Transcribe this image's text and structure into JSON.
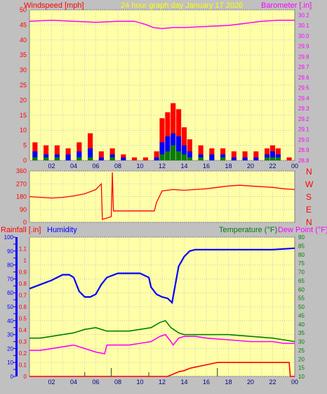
{
  "header": {
    "left_label": "Windspeed [mph]",
    "center_label": "24 hour graph day   January 17 2026",
    "right_label": "Barometer [.in]"
  },
  "direction_labels": [
    "N",
    "W",
    "S",
    "E",
    "N"
  ],
  "bottom_header": {
    "rainfall_label": "Rainfall [.in]",
    "humidity_label": "Humidity",
    "temperature_label": "Temperature (°F)",
    "dewpoint_label": "Dew Point (°F)"
  },
  "colors": {
    "background": "#c0c0c0",
    "plot_bg": "#ffffa8",
    "wind": "#ff0000",
    "wind_avg": "#0000ff",
    "wind_low": "#008000",
    "barometer": "#ff00ff",
    "direction": "#ff0000",
    "rain": "#ff0000",
    "humidity": "#0000ff",
    "temperature": "#008000",
    "dewpoint": "#ff00ff",
    "header_center": "#ffff00"
  },
  "chart_data": [
    {
      "type": "bar",
      "id": "wind",
      "xlabel": "",
      "x_tick_labels": [
        "02",
        "04",
        "06",
        "08",
        "10",
        "12",
        "14",
        "16",
        "18",
        "20",
        "22",
        "00"
      ],
      "ylabel": "Windspeed [mph]",
      "ylim": [
        0,
        50
      ],
      "y_ticks": [
        0,
        5,
        10,
        15,
        20,
        25,
        30,
        35,
        40,
        45,
        50
      ],
      "grid": true,
      "series": [
        {
          "name": "Windspeed [mph]",
          "x_hours": [
            0.5,
            1.5,
            2.5,
            3.5,
            4.5,
            5.5,
            6.5,
            7.5,
            8.5,
            9.5,
            10.5,
            11.5,
            12.0,
            12.5,
            13.0,
            13.5,
            14.0,
            14.5,
            15.5,
            16.5,
            17.5,
            18.5,
            19.5,
            20.5,
            21.5,
            22.0,
            22.5,
            23.5
          ],
          "gust": [
            6,
            5,
            5,
            4,
            6,
            9,
            3,
            4,
            2,
            1,
            1,
            3,
            14,
            16,
            19,
            17,
            11,
            7,
            5,
            4,
            4,
            3,
            3,
            3,
            4,
            5,
            4,
            1
          ],
          "average": [
            3,
            2,
            2,
            2,
            3,
            4,
            1,
            2,
            1,
            0,
            0,
            1,
            6,
            8,
            9,
            8,
            5,
            3,
            2,
            2,
            2,
            1,
            1,
            1,
            2,
            3,
            2,
            0
          ],
          "lull": [
            1,
            1,
            1,
            0,
            1,
            1,
            0,
            1,
            0,
            0,
            0,
            0,
            2,
            3,
            5,
            3,
            2,
            1,
            1,
            0,
            1,
            0,
            0,
            0,
            1,
            1,
            1,
            0
          ]
        }
      ]
    },
    {
      "type": "line",
      "id": "barometer",
      "ylabel": "Barometer [.in]",
      "ylim": [
        28.8,
        30.25
      ],
      "y_ticks": [
        28.8,
        28.9,
        29.0,
        29.1,
        29.2,
        29.3,
        29.4,
        29.5,
        29.6,
        29.7,
        29.8,
        29.9,
        30.0,
        30.1,
        30.2
      ],
      "series": [
        {
          "name": "Barometer [.in]",
          "x_hours": [
            0,
            2,
            4,
            6,
            8,
            9.5,
            10.5,
            11.2,
            12,
            13,
            14,
            16,
            18,
            19.5,
            21,
            22.5,
            24
          ],
          "values": [
            30.14,
            30.15,
            30.14,
            30.13,
            30.14,
            30.14,
            30.11,
            30.08,
            30.07,
            30.08,
            30.08,
            30.09,
            30.1,
            30.12,
            30.14,
            30.15,
            30.15
          ]
        }
      ]
    },
    {
      "type": "line",
      "id": "wind_direction",
      "ylim": [
        0,
        360
      ],
      "y_ticks": [
        0,
        90,
        180,
        270,
        360
      ],
      "series": [
        {
          "name": "Wind direction",
          "x_hours": [
            0,
            1,
            2,
            3,
            4,
            5,
            6,
            6.5,
            6.6,
            7.4,
            7.5,
            7.6,
            9,
            10,
            11,
            11.3,
            11.5,
            12,
            13,
            14,
            15,
            16,
            17,
            18,
            19,
            20,
            21,
            22,
            23,
            24
          ],
          "values": [
            180,
            175,
            170,
            175,
            185,
            200,
            230,
            270,
            20,
            40,
            350,
            80,
            80,
            80,
            80,
            80,
            140,
            220,
            230,
            225,
            230,
            235,
            245,
            255,
            260,
            255,
            250,
            245,
            235,
            230
          ]
        }
      ]
    },
    {
      "type": "line",
      "id": "climate",
      "y_left_rain": {
        "label": "Rainfall [.in]",
        "ylim": [
          0,
          1.2
        ],
        "ticks": [
          0,
          0.1,
          0.2,
          0.3,
          0.4,
          0.5,
          0.6,
          0.7,
          0.8,
          0.9,
          1,
          1.1
        ]
      },
      "y_left_humidity": {
        "label": "Humidity",
        "ylim": [
          0,
          100
        ],
        "ticks": [
          0,
          10,
          20,
          30,
          40,
          50,
          60,
          70,
          80,
          90,
          100
        ]
      },
      "y_right_temp": {
        "label": "Temperature (°F)",
        "ylim": [
          10,
          90
        ],
        "ticks": [
          10,
          15,
          20,
          25,
          30,
          35,
          40,
          45,
          50,
          55,
          60,
          65,
          70,
          75,
          80,
          85,
          90
        ]
      },
      "series": [
        {
          "name": "Humidity",
          "axis": "humidity",
          "x_hours": [
            0,
            1,
            2,
            3,
            3.6,
            4,
            4.5,
            5,
            5.5,
            6,
            6.5,
            7,
            8,
            9,
            10,
            10.8,
            11,
            11.5,
            12,
            12.5,
            12.9,
            13.2,
            13.5,
            14,
            14.5,
            15,
            16,
            18,
            20,
            22,
            24
          ],
          "values": [
            63,
            66,
            69,
            73,
            73,
            71,
            61,
            57,
            57,
            59,
            66,
            71,
            74,
            74,
            74,
            71,
            64,
            59,
            57,
            56,
            53,
            66,
            79,
            86,
            90,
            91,
            91,
            91,
            91,
            91,
            92
          ]
        },
        {
          "name": "Temperature (°F)",
          "axis": "temp",
          "x_hours": [
            0,
            1,
            2,
            3,
            4,
            5,
            6,
            7,
            8,
            9,
            10,
            11,
            11.8,
            12.3,
            12.8,
            13.5,
            14,
            15,
            16,
            18,
            20,
            22,
            23,
            24
          ],
          "values": [
            32,
            32,
            33,
            34,
            35,
            37,
            38,
            36,
            36,
            36,
            37,
            38,
            41,
            42,
            38,
            35,
            34,
            34,
            34,
            34,
            33,
            32,
            31,
            30
          ]
        },
        {
          "name": "Dew Point (°F)",
          "axis": "temp",
          "x_hours": [
            0,
            1,
            2,
            3,
            4,
            5,
            6,
            6.8,
            7,
            8,
            9,
            10,
            11,
            11.8,
            12.3,
            12.8,
            13,
            13.5,
            14,
            15,
            16,
            18,
            20,
            22,
            23,
            24
          ],
          "values": [
            25,
            25,
            26,
            27,
            28,
            26,
            24,
            23,
            28,
            28,
            28,
            29,
            30,
            33,
            34,
            30,
            28,
            32,
            33,
            33,
            32,
            31,
            30,
            30,
            29,
            29
          ]
        },
        {
          "name": "Rainfall [.in]",
          "axis": "rain",
          "x_hours": [
            0,
            12.5,
            13,
            13.5,
            14,
            14.5,
            15,
            15.5,
            16,
            16.5,
            17,
            23.5,
            23.6,
            24
          ],
          "values": [
            0,
            0,
            0.02,
            0.04,
            0.05,
            0.07,
            0.08,
            0.09,
            0.1,
            0.11,
            0.12,
            0.12,
            0,
            0
          ]
        }
      ]
    }
  ]
}
